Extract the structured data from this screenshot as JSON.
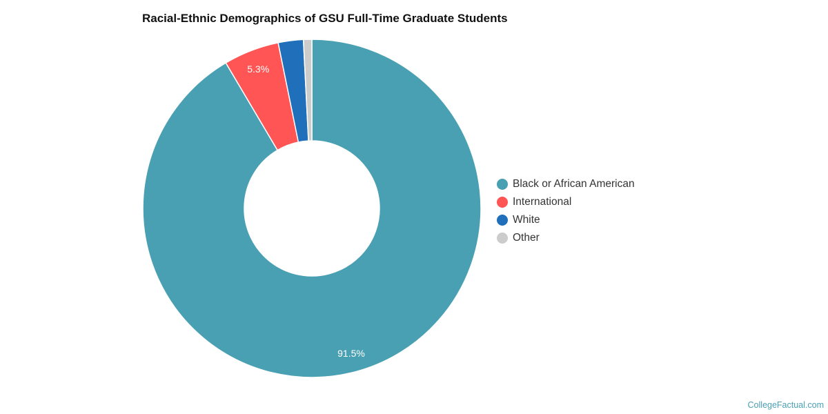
{
  "title": "Racial-Ethnic Demographics of GSU Full-Time Graduate Students",
  "credit": "CollegeFactual.com",
  "chart_data": {
    "type": "pie",
    "subtype": "donut",
    "title": "Racial-Ethnic Demographics of GSU Full-Time Graduate Students",
    "categories": [
      "Black or African American",
      "International",
      "White",
      "Other"
    ],
    "values": [
      91.5,
      5.3,
      2.4,
      0.8
    ],
    "colors": [
      "#4aa0b3",
      "#ff5555",
      "#1f6fba",
      "#cccccc"
    ],
    "data_labels": [
      "91.5%",
      "5.3%",
      "",
      ""
    ],
    "legend_position": "right"
  },
  "legend": [
    {
      "label": "Black or African American",
      "color": "#4aa0b3"
    },
    {
      "label": "International",
      "color": "#ff5555"
    },
    {
      "label": "White",
      "color": "#1f6fba"
    },
    {
      "label": "Other",
      "color": "#cccccc"
    }
  ]
}
